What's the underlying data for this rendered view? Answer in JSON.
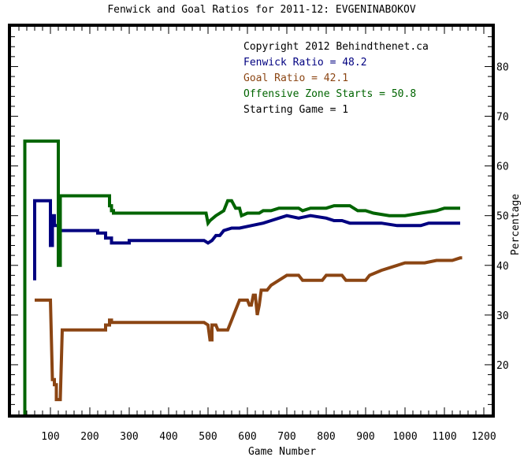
{
  "chart_data": {
    "type": "line",
    "title": "Fenwick and Goal Ratios for 2011-12: EVGENINABOKOV",
    "xlabel": "Game Number",
    "ylabel": "Percentage",
    "xlim": [
      0,
      1220
    ],
    "ylim": [
      10,
      88
    ],
    "x_ticks": [
      100,
      200,
      300,
      400,
      500,
      600,
      700,
      800,
      900,
      1000,
      1100,
      1200
    ],
    "y_ticks": [
      20,
      30,
      40,
      50,
      60,
      70,
      80
    ],
    "grid": false,
    "legend_position": "top-right",
    "annotations": [
      {
        "text": "Copyright 2012 Behindthenet.ca",
        "color": "#000000"
      },
      {
        "text": "Fenwick Ratio = 48.2",
        "color": "#000080"
      },
      {
        "text": "Goal Ratio = 42.1",
        "color": "#8b4513"
      },
      {
        "text": "Offensive Zone Starts = 50.8",
        "color": "#006400"
      },
      {
        "text": "Starting Game = 1",
        "color": "#000000"
      }
    ],
    "series": [
      {
        "color": "#000080",
        "points": [
          [
            60,
            37
          ],
          [
            60,
            53
          ],
          [
            100,
            53
          ],
          [
            100,
            44
          ],
          [
            105,
            44
          ],
          [
            105,
            50
          ],
          [
            110,
            50
          ],
          [
            110,
            48
          ],
          [
            120,
            48
          ],
          [
            120,
            47
          ],
          [
            220,
            47
          ],
          [
            220,
            46.5
          ],
          [
            240,
            46.5
          ],
          [
            240,
            45.5
          ],
          [
            255,
            45.5
          ],
          [
            255,
            44.5
          ],
          [
            300,
            44.5
          ],
          [
            300,
            45
          ],
          [
            490,
            45
          ],
          [
            500,
            44.5
          ],
          [
            510,
            45
          ],
          [
            515,
            45.5
          ],
          [
            520,
            46
          ],
          [
            530,
            46
          ],
          [
            540,
            47
          ],
          [
            560,
            47.5
          ],
          [
            580,
            47.5
          ],
          [
            610,
            48
          ],
          [
            640,
            48.5
          ],
          [
            660,
            49
          ],
          [
            680,
            49.5
          ],
          [
            700,
            50
          ],
          [
            730,
            49.5
          ],
          [
            760,
            50
          ],
          [
            800,
            49.5
          ],
          [
            820,
            49
          ],
          [
            840,
            49
          ],
          [
            860,
            48.5
          ],
          [
            900,
            48.5
          ],
          [
            940,
            48.5
          ],
          [
            980,
            48
          ],
          [
            1040,
            48
          ],
          [
            1060,
            48.5
          ],
          [
            1100,
            48.5
          ],
          [
            1140,
            48.5
          ]
        ]
      },
      {
        "color": "#8b4513",
        "points": [
          [
            60,
            33
          ],
          [
            100,
            33
          ],
          [
            105,
            17
          ],
          [
            110,
            17
          ],
          [
            110,
            16
          ],
          [
            115,
            16
          ],
          [
            115,
            13
          ],
          [
            125,
            13
          ],
          [
            130,
            27
          ],
          [
            240,
            27
          ],
          [
            240,
            28
          ],
          [
            250,
            28
          ],
          [
            250,
            29
          ],
          [
            255,
            29
          ],
          [
            255,
            28.5
          ],
          [
            300,
            28.5
          ],
          [
            490,
            28.5
          ],
          [
            500,
            28
          ],
          [
            505,
            25
          ],
          [
            510,
            25
          ],
          [
            510,
            28
          ],
          [
            520,
            28
          ],
          [
            525,
            27
          ],
          [
            550,
            27
          ],
          [
            560,
            29
          ],
          [
            570,
            31
          ],
          [
            580,
            33
          ],
          [
            600,
            33
          ],
          [
            605,
            32
          ],
          [
            610,
            32
          ],
          [
            615,
            34
          ],
          [
            620,
            34
          ],
          [
            625,
            30
          ],
          [
            630,
            32
          ],
          [
            635,
            35
          ],
          [
            650,
            35
          ],
          [
            660,
            36
          ],
          [
            680,
            37
          ],
          [
            700,
            38
          ],
          [
            730,
            38
          ],
          [
            740,
            37
          ],
          [
            790,
            37
          ],
          [
            800,
            38
          ],
          [
            840,
            38
          ],
          [
            850,
            37
          ],
          [
            900,
            37
          ],
          [
            910,
            38
          ],
          [
            940,
            39
          ],
          [
            980,
            40
          ],
          [
            1000,
            40.5
          ],
          [
            1050,
            40.5
          ],
          [
            1080,
            41
          ],
          [
            1120,
            41
          ],
          [
            1140,
            41.5
          ],
          [
            1145,
            41.5
          ]
        ]
      },
      {
        "color": "#006400",
        "points": [
          [
            35,
            10
          ],
          [
            35,
            65
          ],
          [
            120,
            65
          ],
          [
            120,
            40
          ],
          [
            125,
            40
          ],
          [
            125,
            54
          ],
          [
            250,
            54
          ],
          [
            250,
            52
          ],
          [
            255,
            52
          ],
          [
            255,
            51
          ],
          [
            260,
            51
          ],
          [
            260,
            50.5
          ],
          [
            480,
            50.5
          ],
          [
            495,
            50.5
          ],
          [
            500,
            48.5
          ],
          [
            505,
            49
          ],
          [
            520,
            50
          ],
          [
            540,
            51
          ],
          [
            550,
            53
          ],
          [
            560,
            53
          ],
          [
            570,
            51.5
          ],
          [
            580,
            51.5
          ],
          [
            585,
            50
          ],
          [
            600,
            50.5
          ],
          [
            630,
            50.5
          ],
          [
            640,
            51
          ],
          [
            660,
            51
          ],
          [
            680,
            51.5
          ],
          [
            730,
            51.5
          ],
          [
            740,
            51
          ],
          [
            760,
            51.5
          ],
          [
            800,
            51.5
          ],
          [
            820,
            52
          ],
          [
            860,
            52
          ],
          [
            880,
            51
          ],
          [
            900,
            51
          ],
          [
            920,
            50.5
          ],
          [
            960,
            50
          ],
          [
            1000,
            50
          ],
          [
            1040,
            50.5
          ],
          [
            1080,
            51
          ],
          [
            1100,
            51.5
          ],
          [
            1140,
            51.5
          ]
        ]
      }
    ]
  }
}
